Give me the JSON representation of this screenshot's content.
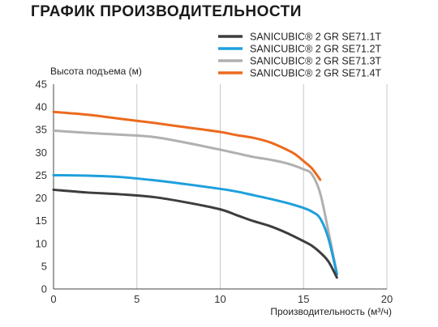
{
  "page": {
    "title": "ГРАФИК ПРОИЗВОДИТЕЛЬНОСТИ"
  },
  "chart_data": {
    "type": "line",
    "xlabel": "Производительность (м³/ч)",
    "ylabel": "Высота подъема (м)",
    "xlim": [
      0,
      20
    ],
    "ylim": [
      0,
      45
    ],
    "xticks": [
      0,
      5,
      10,
      15,
      20
    ],
    "yticks": [
      0,
      5,
      10,
      15,
      20,
      25,
      30,
      35,
      40,
      45
    ],
    "grid": "vertical",
    "legend_position": "top-right",
    "series": [
      {
        "name": "SANICUBIC® 2 GR SE71.1T",
        "color": "#3d3d3d",
        "x": [
          0,
          2,
          4,
          6,
          8,
          10,
          11,
          12,
          13,
          14,
          15,
          15.5,
          16,
          16.5,
          17
        ],
        "y": [
          21.8,
          21.2,
          20.8,
          20.2,
          19.0,
          17.5,
          16.2,
          14.9,
          13.8,
          12.3,
          10.5,
          9.5,
          8.0,
          6.0,
          2.5
        ]
      },
      {
        "name": "SANICUBIC® 2 GR SE71.2T",
        "color": "#1ea0dc",
        "x": [
          0,
          2,
          4,
          6,
          8,
          10,
          11,
          12,
          13,
          14,
          15,
          15.5,
          16,
          16.5,
          17
        ],
        "y": [
          25.0,
          24.9,
          24.6,
          23.9,
          23.0,
          22.0,
          21.4,
          20.6,
          19.8,
          18.9,
          17.8,
          17.0,
          15.5,
          11.0,
          3.2
        ]
      },
      {
        "name": "SANICUBIC® 2 GR SE71.3T",
        "color": "#b0b0b0",
        "x": [
          0,
          2,
          4,
          6,
          8,
          10,
          11,
          12,
          13,
          14,
          15,
          15.5,
          16,
          16.5,
          17
        ],
        "y": [
          34.8,
          34.3,
          33.9,
          33.4,
          32.1,
          30.6,
          29.8,
          29.0,
          28.4,
          27.6,
          26.3,
          25.2,
          21.0,
          12.5,
          3.5
        ]
      },
      {
        "name": "SANICUBIC® 2 GR SE71.4T",
        "color": "#ec6a1e",
        "x": [
          0,
          2,
          4,
          6,
          8,
          10,
          11,
          12,
          13,
          14,
          14.5,
          15,
          15.5,
          16
        ],
        "y": [
          38.9,
          38.3,
          37.4,
          36.5,
          35.5,
          34.5,
          33.8,
          33.2,
          32.2,
          30.6,
          29.6,
          28.1,
          26.5,
          24.0
        ]
      }
    ]
  }
}
